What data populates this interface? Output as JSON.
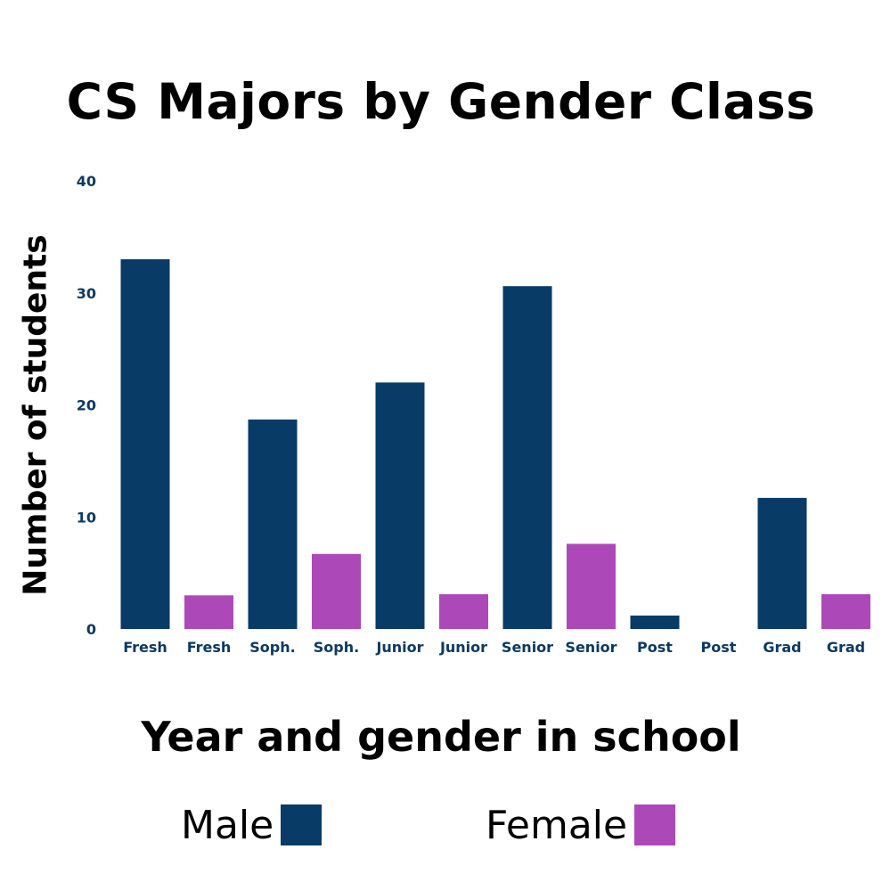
{
  "chart_data": {
    "type": "bar",
    "title": "CS Majors by Gender Class",
    "xlabel": "Year and gender in school",
    "ylabel": "Number of students",
    "ylim": [
      0,
      40
    ],
    "yticks": [
      0,
      10,
      20,
      30,
      40
    ],
    "grid": false,
    "legend_position": "bottom",
    "categories": [
      "Fresh",
      "Fresh",
      "Soph.",
      "Soph.",
      "Junior",
      "Junior",
      "Senior",
      "Senior",
      "Post",
      "Post",
      "Grad",
      "Grad"
    ],
    "values": [
      33,
      3,
      18.7,
      6.7,
      22,
      3.1,
      30.6,
      7.6,
      1.2,
      0,
      11.7,
      3.1
    ],
    "series_of_bar": [
      "Male",
      "Female",
      "Male",
      "Female",
      "Male",
      "Female",
      "Male",
      "Female",
      "Male",
      "Female",
      "Male",
      "Female"
    ],
    "series": [
      {
        "name": "Male",
        "color": "#083b66"
      },
      {
        "name": "Female",
        "color": "#ad48b9"
      }
    ],
    "tick_color": "#0b3a64"
  }
}
